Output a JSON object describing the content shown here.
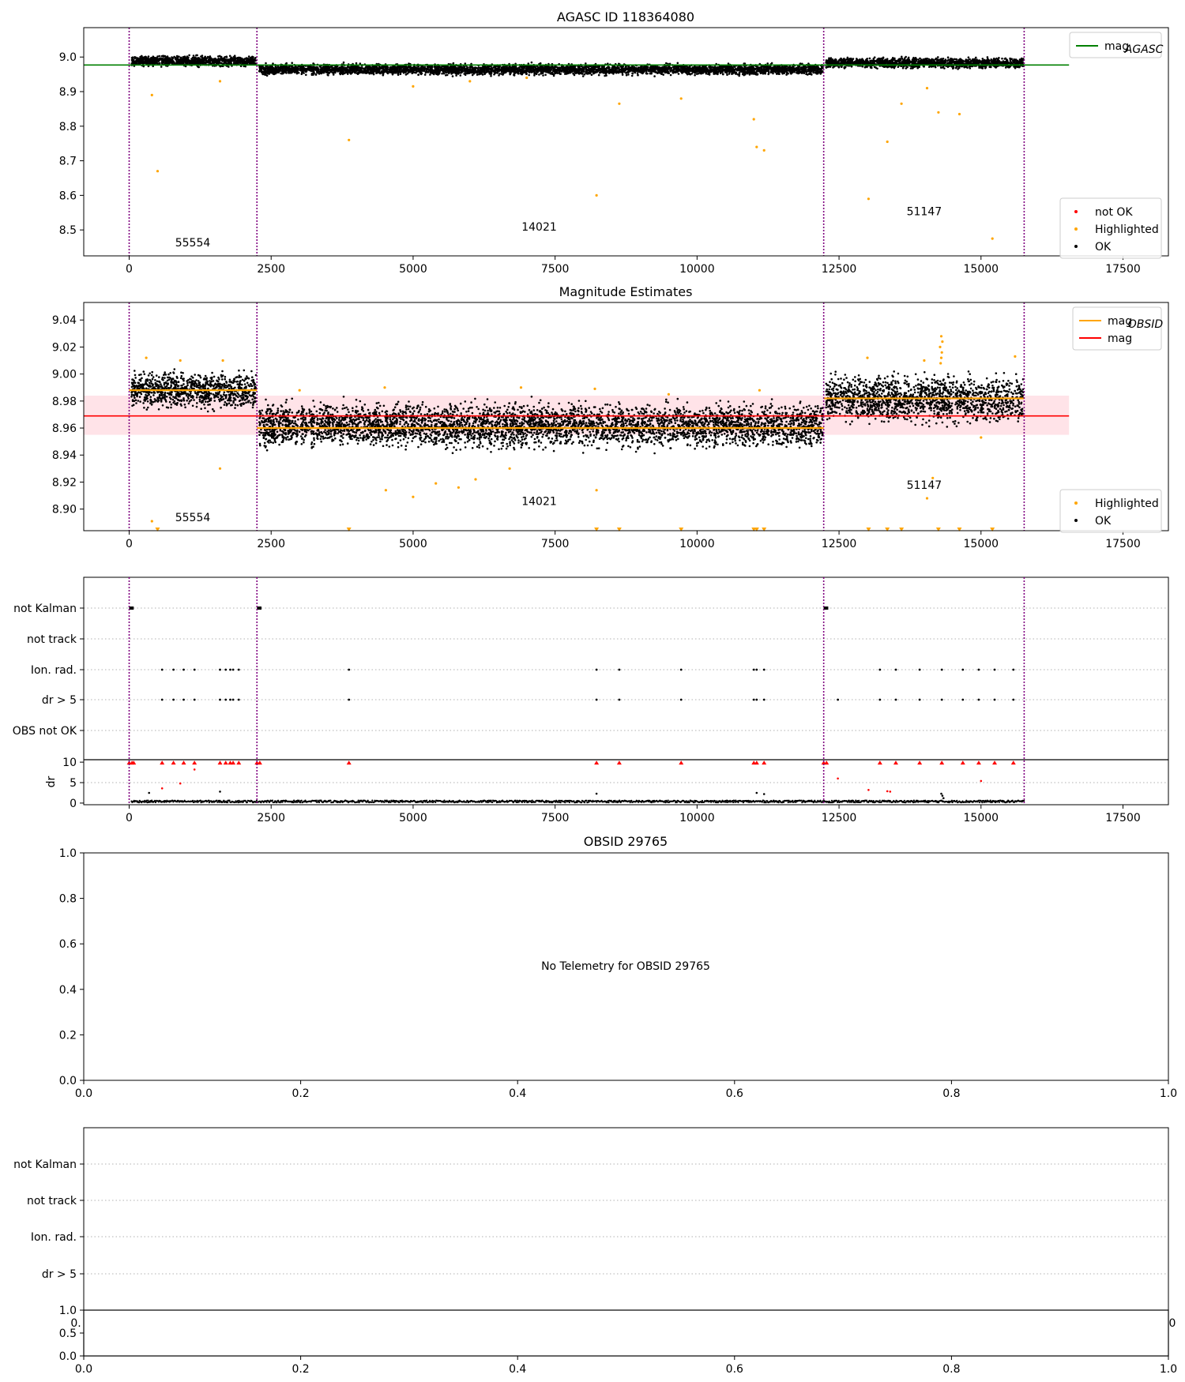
{
  "figure": {
    "agasc_title": "AGASC ID 118364080",
    "mag_title": "Magnitude Estimates",
    "obsid_title": "OBSID 29765",
    "no_telemetry": "No Telemetry for OBSID 29765"
  },
  "colors": {
    "ok": "#000000",
    "highlighted": "#ffa500",
    "not_ok": "#ff0000",
    "mag_agasc": "#008000",
    "mag_obsid": "#ffa500",
    "mag": "#ff0000",
    "band": "#ffc0cb",
    "obs_boundary": "#800080",
    "grid": "#b0b0b0"
  },
  "chart_data": [
    {
      "name": "agasc",
      "type": "scatter",
      "title": "AGASC ID 118364080",
      "xlim": [
        -800,
        18300
      ],
      "ylim": [
        8.425,
        9.085
      ],
      "xticks": [
        0,
        2500,
        5000,
        7500,
        10000,
        12500,
        15000,
        17500
      ],
      "yticks": [
        8.5,
        8.6,
        8.7,
        8.8,
        8.9,
        9.0
      ],
      "ytick_labels": [
        "8.5",
        "8.6",
        "8.7",
        "8.8",
        "8.9",
        "9.0"
      ],
      "obs_boundaries": [
        0,
        2250,
        12230,
        15760
      ],
      "obs_labels": [
        {
          "text": "55554",
          "x": 1120,
          "y": 8.452
        },
        {
          "text": "14021",
          "x": 7220,
          "y": 8.498
        },
        {
          "text": "51147",
          "x": 14000,
          "y": 8.543
        }
      ],
      "mag_agasc": {
        "value": 8.977,
        "x": [
          -800,
          16550
        ]
      },
      "ok_segments": [
        {
          "x": [
            0,
            2250
          ],
          "y": [
            8.968,
            9.008
          ]
        },
        {
          "x": [
            2250,
            12230
          ],
          "y": [
            8.943,
            8.985
          ]
        },
        {
          "x": [
            12230,
            15760
          ],
          "y": [
            8.963,
            9.003
          ]
        }
      ],
      "highlighted": [
        [
          400,
          8.89
        ],
        [
          500,
          8.67
        ],
        [
          1600,
          8.93
        ],
        [
          3870,
          8.76
        ],
        [
          8230,
          8.6
        ],
        [
          8630,
          8.865
        ],
        [
          9720,
          8.88
        ],
        [
          11000,
          8.82
        ],
        [
          11050,
          8.74
        ],
        [
          11180,
          8.73
        ],
        [
          13020,
          8.59
        ],
        [
          13350,
          8.755
        ],
        [
          13600,
          8.865
        ],
        [
          14050,
          8.91
        ],
        [
          14250,
          8.84
        ],
        [
          14620,
          8.835
        ],
        [
          15200,
          8.475
        ],
        [
          5000,
          8.915
        ],
        [
          6000,
          8.93
        ],
        [
          7000,
          8.94
        ]
      ],
      "legends": [
        {
          "entries": [
            {
              "label": "mag",
              "sub": "AGASC",
              "kind": "line",
              "color": "#008000"
            }
          ]
        },
        {
          "entries": [
            {
              "label": "not OK",
              "kind": "dot",
              "color": "#ff0000"
            },
            {
              "label": "Highlighted",
              "kind": "dot",
              "color": "#ffa500"
            },
            {
              "label": "OK",
              "kind": "dot",
              "color": "#000000"
            }
          ]
        }
      ]
    },
    {
      "name": "magnitude-estimates",
      "type": "scatter",
      "title": "Magnitude Estimates",
      "xlim": [
        -800,
        18300
      ],
      "ylim": [
        8.884,
        9.053
      ],
      "xticks": [
        0,
        2500,
        5000,
        7500,
        10000,
        12500,
        15000,
        17500
      ],
      "yticks": [
        8.9,
        8.92,
        8.94,
        8.96,
        8.98,
        9.0,
        9.02,
        9.04
      ],
      "ytick_labels": [
        "8.90",
        "8.92",
        "8.94",
        "8.96",
        "8.98",
        "9.00",
        "9.02",
        "9.04"
      ],
      "obs_boundaries": [
        0,
        2250,
        12230,
        15760
      ],
      "obs_labels": [
        {
          "text": "55554",
          "x": 1120,
          "y": 8.891
        },
        {
          "text": "14021",
          "x": 7220,
          "y": 8.903
        },
        {
          "text": "51147",
          "x": 14000,
          "y": 8.915
        }
      ],
      "mag": {
        "value": 8.969,
        "band": [
          8.955,
          8.984
        ],
        "x": [
          -800,
          16550
        ]
      },
      "mag_obsid": [
        {
          "x": [
            0,
            2250
          ],
          "value": 8.988
        },
        {
          "x": [
            2250,
            12230
          ],
          "value": 8.96
        },
        {
          "x": [
            12230,
            15760
          ],
          "value": 8.982
        }
      ],
      "ok_segments": [
        {
          "x": [
            0,
            2250
          ],
          "y": [
            8.97,
            9.006
          ]
        },
        {
          "x": [
            2250,
            12230
          ],
          "y": [
            8.94,
            8.984
          ]
        },
        {
          "x": [
            12230,
            15760
          ],
          "y": [
            8.958,
            9.005
          ]
        }
      ],
      "highlighted": [
        [
          300,
          9.012
        ],
        [
          900,
          9.01
        ],
        [
          1650,
          9.01
        ],
        [
          1600,
          8.93
        ],
        [
          400,
          8.891
        ],
        [
          4520,
          8.914
        ],
        [
          5000,
          8.909
        ],
        [
          5400,
          8.919
        ],
        [
          5800,
          8.916
        ],
        [
          6100,
          8.922
        ],
        [
          6700,
          8.93
        ],
        [
          8230,
          8.914
        ],
        [
          13000,
          9.012
        ],
        [
          14000,
          9.01
        ],
        [
          14150,
          8.923
        ],
        [
          14050,
          8.908
        ],
        [
          15000,
          8.953
        ],
        [
          15600,
          9.013
        ],
        [
          14300,
          9.028
        ],
        [
          14320,
          9.024
        ],
        [
          14280,
          9.02
        ],
        [
          14310,
          9.016
        ],
        [
          14300,
          9.012
        ],
        [
          14290,
          9.008
        ],
        [
          3000,
          8.988
        ],
        [
          4500,
          8.99
        ],
        [
          6900,
          8.99
        ],
        [
          8200,
          8.989
        ],
        [
          9500,
          8.985
        ],
        [
          11100,
          8.988
        ]
      ],
      "below_range": [
        500,
        3870,
        8230,
        8630,
        9720,
        11000,
        11050,
        11180,
        13020,
        13350,
        13600,
        14250,
        14620,
        15200
      ],
      "legends": [
        {
          "entries": [
            {
              "label": "mag",
              "sub": "OBSID",
              "kind": "line",
              "color": "#ffa500"
            },
            {
              "label": "mag",
              "kind": "line",
              "color": "#ff0000"
            }
          ]
        },
        {
          "entries": [
            {
              "label": "Highlighted",
              "kind": "dot",
              "color": "#ffa500"
            },
            {
              "label": "OK",
              "kind": "dot",
              "color": "#000000"
            }
          ]
        }
      ]
    },
    {
      "name": "flags",
      "type": "scatter",
      "xlim": [
        -800,
        18300
      ],
      "xticks": [
        0,
        2500,
        5000,
        7500,
        10000,
        12500,
        15000,
        17500
      ],
      "categories": [
        "not Kalman",
        "not track",
        "Ion. rad.",
        "dr > 5",
        "OBS not OK"
      ],
      "obs_boundaries": [
        0,
        2250,
        12230,
        15760
      ],
      "not_kalman": [
        [
          0,
          80
        ],
        [
          2250,
          2330
        ],
        [
          12230,
          12310
        ]
      ],
      "ion_rad": [
        580,
        780,
        960,
        1150,
        1600,
        1700,
        1780,
        1830,
        1930,
        3870,
        8230,
        8630,
        9720,
        11000,
        11050,
        11180,
        13220,
        13500,
        13920,
        14310,
        14680,
        14960,
        15240,
        15570
      ],
      "dr_gt_5": [
        580,
        780,
        960,
        1150,
        1600,
        1700,
        1780,
        1830,
        1930,
        3870,
        8230,
        8630,
        9720,
        11000,
        11050,
        11180,
        12480,
        13220,
        13500,
        13920,
        14310,
        14680,
        14960,
        15240,
        15570
      ],
      "dr": {
        "ylabel": "dr",
        "ylim": [
          -0.4,
          10.6
        ],
        "yticks": [
          0,
          5,
          10
        ],
        "ytick_labels": [
          "0",
          "5",
          "10"
        ],
        "baseline": 0.4,
        "clipped_at_10": [
          0,
          50,
          80,
          580,
          780,
          960,
          1150,
          1600,
          1700,
          1780,
          1830,
          1930,
          2250,
          2300,
          3870,
          8230,
          8630,
          9720,
          11000,
          11050,
          11180,
          12230,
          12280,
          13220,
          13500,
          13920,
          14310,
          14680,
          14960,
          15240,
          15570
        ],
        "red_points": [
          [
            580,
            3.6
          ],
          [
            900,
            4.8
          ],
          [
            1150,
            8.2
          ],
          [
            12480,
            6.0
          ],
          [
            13020,
            3.2
          ],
          [
            13350,
            2.9
          ],
          [
            13400,
            2.8
          ],
          [
            15000,
            5.4
          ]
        ],
        "black_points": [
          [
            350,
            2.5
          ],
          [
            1600,
            2.8
          ],
          [
            11050,
            2.5
          ],
          [
            11180,
            2.2
          ],
          [
            14300,
            2.3
          ],
          [
            14320,
            1.8
          ],
          [
            14340,
            1.2
          ],
          [
            8230,
            2.3
          ]
        ]
      }
    },
    {
      "name": "obsid-29765",
      "type": "empty",
      "title": "OBSID 29765",
      "xlim": [
        0,
        1
      ],
      "ylim": [
        0,
        1
      ],
      "xticks": [
        0,
        0.2,
        0.4,
        0.6,
        0.8,
        1.0
      ],
      "xtick_labels": [
        "0.0",
        "0.2",
        "0.4",
        "0.6",
        "0.8",
        "1.0"
      ],
      "yticks": [
        0,
        0.2,
        0.4,
        0.6,
        0.8,
        1.0
      ],
      "ytick_labels": [
        "0.0",
        "0.2",
        "0.4",
        "0.6",
        "0.8",
        "1.0"
      ],
      "message": "No Telemetry for OBSID 29765"
    },
    {
      "name": "obsid-29765-flags",
      "type": "empty",
      "categories": [
        "not Kalman",
        "not track",
        "Ion. rad.",
        "dr > 5"
      ],
      "clipped_tick_left": "0.",
      "clipped_tick_right": "0",
      "bottom": {
        "xlim": [
          0,
          1
        ],
        "ylim": [
          0,
          1
        ],
        "xticks": [
          0,
          0.2,
          0.4,
          0.6,
          0.8,
          1.0
        ],
        "xtick_labels": [
          "0.0",
          "0.2",
          "0.4",
          "0.6",
          "0.8",
          "1.0"
        ],
        "yticks": [
          0,
          0.5,
          1.0
        ],
        "ytick_labels": [
          "0.0",
          "0.5",
          "1.0"
        ]
      }
    }
  ]
}
